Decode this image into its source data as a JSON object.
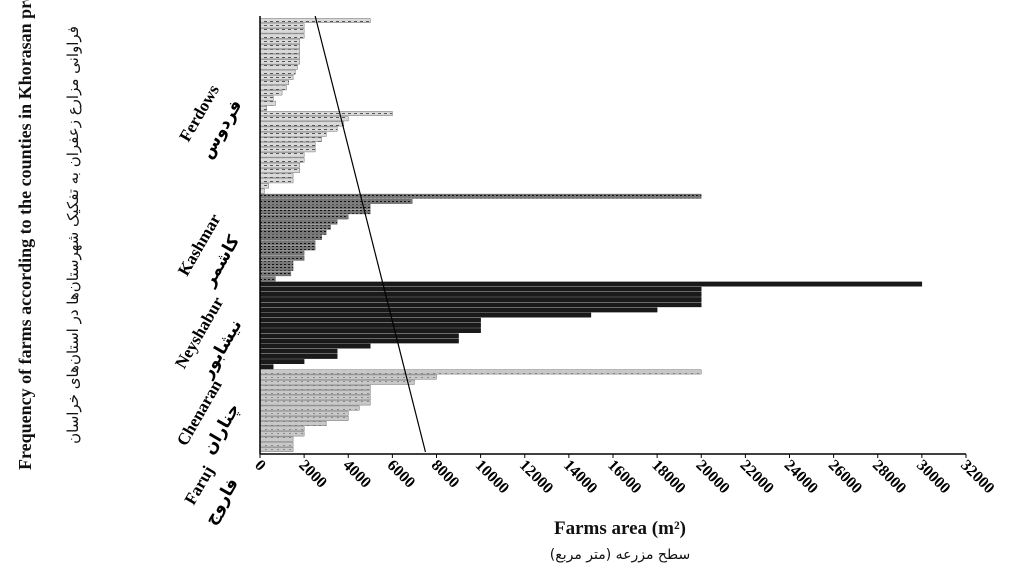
{
  "chart_data": {
    "type": "bar",
    "orientation": "horizontal",
    "title": "Frequency of farms according to the counties in Khorasan provinces",
    "title_fa": "فراوانی مزارع زعفران به تفکیک شهرستان‌ها در استان‌های خراسان",
    "xlabel": "Farms area (m²)",
    "xlabel_fa": "سطح مزرعه (متر مربع)",
    "xlim": [
      0,
      32000
    ],
    "xticks": [
      "0",
      "2000",
      "4000",
      "6000",
      "8000",
      "10000",
      "12000",
      "14000",
      "16000",
      "18000",
      "20000",
      "22000",
      "24000",
      "26000",
      "28000",
      "30000",
      "32000"
    ],
    "trendline": {
      "from": [
        2500,
        1
      ],
      "to": [
        7500,
        0
      ]
    },
    "groups": [
      {
        "name": "Ferdows",
        "name_fa": "فردوس",
        "pattern": "dots",
        "values": [
          5000,
          2000,
          2000,
          2000,
          1800,
          1800,
          1800,
          1800,
          1800,
          1700,
          1600,
          1500,
          1300,
          1200,
          1000,
          600,
          700,
          300,
          6000,
          4000,
          3800,
          3500,
          3000,
          2800,
          2500,
          2500,
          2000,
          2000,
          1800,
          1800,
          1500,
          1500,
          400,
          200
        ]
      },
      {
        "name": "Kashmar",
        "name_fa": "کاشمر",
        "pattern": "dense",
        "values": [
          20000,
          6900,
          5000,
          5000,
          4000,
          3500,
          3200,
          3000,
          2800,
          2500,
          2500,
          2000,
          2000,
          1500,
          1500,
          1400,
          700
        ]
      },
      {
        "name": "Neyshabur",
        "name_fa": "نیشابور",
        "pattern": "solid",
        "values": [
          30000,
          20000,
          20000,
          20000,
          20000,
          18000,
          15000,
          10000,
          10000,
          10000,
          9000,
          9000,
          5000,
          3500,
          3500,
          2000,
          600
        ]
      },
      {
        "name": "Chenaran",
        "name_fa": "چناران",
        "pattern": "light",
        "values": [
          20000,
          8000,
          7000,
          5000,
          5000,
          5000,
          5000,
          4500,
          4000,
          4000,
          3000,
          2000,
          2000,
          1500
        ]
      },
      {
        "name": "Faruj",
        "name_fa": "فاروج",
        "pattern": "light",
        "values": [
          1500,
          1500
        ]
      }
    ]
  }
}
